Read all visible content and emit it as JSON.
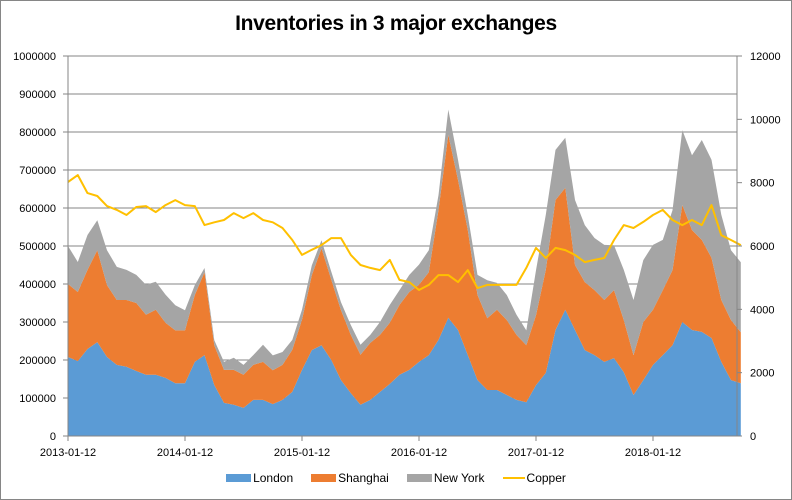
{
  "chart_data": {
    "type": "area",
    "title": "Inventories in 3 major exchanges",
    "xlabel": "",
    "ylabel": "",
    "y2label": "",
    "ylim": [
      0,
      1000000
    ],
    "y2lim": [
      0,
      12000
    ],
    "yticks": [
      "0",
      "100000",
      "200000",
      "300000",
      "400000",
      "500000",
      "600000",
      "700000",
      "800000",
      "900000",
      "1000000"
    ],
    "y2ticks": [
      "0",
      "2000",
      "4000",
      "6000",
      "8000",
      "10000",
      "12000"
    ],
    "xticks": [
      "2013-01-12",
      "2014-01-12",
      "2015-01-12",
      "2016-01-12",
      "2017-01-12",
      "2018-01-12"
    ],
    "grid": true,
    "legend_position": "bottom",
    "x_start": "2013-01-12",
    "x_step": "monthly",
    "stacked": true,
    "series": [
      {
        "name": "London",
        "kind": "area",
        "axis": "left",
        "color": "#5B9BD5",
        "values": [
          208000,
          197000,
          229000,
          247000,
          208000,
          187000,
          182000,
          171000,
          161000,
          161000,
          153000,
          139000,
          139000,
          195000,
          213000,
          134000,
          87000,
          82000,
          74000,
          95000,
          95000,
          84000,
          95000,
          116000,
          174000,
          226000,
          239000,
          200000,
          147000,
          113000,
          82000,
          95000,
          116000,
          137000,
          161000,
          174000,
          195000,
          213000,
          253000,
          311000,
          279000,
          213000,
          147000,
          121000,
          121000,
          108000,
          95000,
          89000,
          134000,
          166000,
          279000,
          332000,
          279000,
          226000,
          213000,
          195000,
          205000,
          168000,
          108000,
          147000,
          187000,
          213000,
          239000,
          300000,
          279000,
          274000,
          258000,
          195000,
          147000,
          139000
        ]
      },
      {
        "name": "Shanghai",
        "kind": "area",
        "axis": "left",
        "color": "#ED7D31",
        "values": [
          192000,
          182000,
          208000,
          242000,
          189000,
          171000,
          176000,
          179000,
          158000,
          171000,
          145000,
          139000,
          139000,
          176000,
          218000,
          105000,
          87000,
          92000,
          87000,
          92000,
          100000,
          89000,
          92000,
          111000,
          132000,
          197000,
          255000,
          211000,
          184000,
          153000,
          132000,
          150000,
          150000,
          161000,
          184000,
          205000,
          203000,
          218000,
          342000,
          482000,
          395000,
          329000,
          224000,
          189000,
          211000,
          197000,
          171000,
          150000,
          184000,
          271000,
          342000,
          321000,
          171000,
          179000,
          171000,
          163000,
          179000,
          137000,
          105000,
          153000,
          145000,
          171000,
          197000,
          308000,
          263000,
          242000,
          211000,
          163000,
          158000,
          134000
        ]
      },
      {
        "name": "New York",
        "kind": "area",
        "axis": "left",
        "color": "#A5A5A5",
        "values": [
          100000,
          79000,
          92000,
          79000,
          92000,
          87000,
          79000,
          74000,
          79000,
          74000,
          74000,
          66000,
          53000,
          26000,
          11000,
          13000,
          21000,
          32000,
          26000,
          26000,
          45000,
          39000,
          34000,
          26000,
          26000,
          26000,
          21000,
          21000,
          21000,
          26000,
          26000,
          21000,
          34000,
          47000,
          39000,
          45000,
          53000,
          58000,
          39000,
          66000,
          53000,
          39000,
          53000,
          100000,
          71000,
          66000,
          53000,
          39000,
          118000,
          145000,
          132000,
          132000,
          171000,
          150000,
          137000,
          145000,
          118000,
          132000,
          145000,
          163000,
          171000,
          132000,
          158000,
          197000,
          197000,
          263000,
          258000,
          224000,
          184000,
          184000
        ]
      },
      {
        "name": "Copper",
        "kind": "line",
        "axis": "right",
        "color": "#FFC000",
        "values": [
          8020,
          8240,
          7670,
          7580,
          7260,
          7140,
          6980,
          7230,
          7260,
          7070,
          7290,
          7450,
          7290,
          7260,
          6660,
          6750,
          6820,
          7040,
          6880,
          7040,
          6820,
          6750,
          6570,
          6190,
          5720,
          5880,
          6030,
          6250,
          6250,
          5720,
          5400,
          5310,
          5240,
          5560,
          4930,
          4860,
          4610,
          4770,
          5080,
          5080,
          4860,
          5240,
          4670,
          4770,
          4770,
          4770,
          4770,
          5310,
          5940,
          5620,
          5940,
          5870,
          5720,
          5490,
          5560,
          5620,
          6190,
          6660,
          6570,
          6760,
          6980,
          7140,
          6820,
          6660,
          6820,
          6660,
          7290,
          6340,
          6190,
          6030
        ]
      }
    ]
  }
}
